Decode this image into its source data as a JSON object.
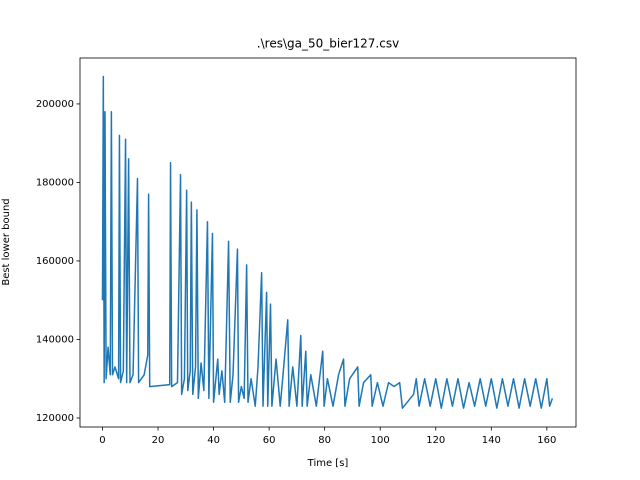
{
  "chart_data": {
    "type": "line",
    "title": ".\\res\\ga_50_bier127.csv",
    "x_label": "Time [s]",
    "y_label": "Best lower bound",
    "xlim": [
      -8.1,
      170.5
    ],
    "ylim": [
      117700,
      211700
    ],
    "xticks": [
      0,
      20,
      40,
      60,
      80,
      100,
      120,
      140,
      160
    ],
    "yticks": [
      120000,
      140000,
      160000,
      180000,
      200000
    ],
    "grid": false,
    "series": [
      {
        "color": "#1f77b4",
        "x": [
          0,
          0.3,
          0.6,
          0.9,
          1.3,
          2,
          2.8,
          3.2,
          3.6,
          4.5,
          5.8,
          6.1,
          6.5,
          7.5,
          8.3,
          8.7,
          9.4,
          9.9,
          11,
          12.6,
          13,
          15,
          16.3,
          16.6,
          17,
          24.2,
          24.5,
          24.9,
          27,
          28.1,
          28.5,
          29.5,
          30.3,
          30.7,
          31.6,
          32,
          32.5,
          33.5,
          34,
          34.5,
          35.5,
          36.5,
          37.8,
          38.3,
          39.6,
          40,
          41.5,
          42,
          43,
          44,
          45.4,
          46,
          47,
          48.6,
          49,
          50,
          51,
          51.9,
          52.4,
          53.5,
          55,
          56,
          57.3,
          57.8,
          59.1,
          59.5,
          60.5,
          61,
          62.5,
          64,
          65,
          66.7,
          67.2,
          68.5,
          70,
          71.4,
          71.9,
          73.2,
          73.7,
          75,
          77,
          79.3,
          79.8,
          81,
          83,
          85,
          86.8,
          87.3,
          89,
          91.9,
          92.4,
          94,
          96.6,
          97.1,
          99,
          101,
          103,
          105,
          107,
          108,
          112,
          113,
          114,
          116,
          118,
          120,
          122,
          124,
          126,
          128,
          130,
          132,
          134,
          136,
          138,
          140,
          142,
          144,
          146,
          148,
          150,
          152,
          154,
          156,
          158,
          160,
          161,
          162
        ],
        "values": [
          150000,
          207000,
          129000,
          198000,
          130000,
          138000,
          131000,
          198000,
          131000,
          133000,
          130000,
          192000,
          129000,
          132000,
          191000,
          129000,
          186000,
          129000,
          131000,
          181000,
          129000,
          131000,
          136000,
          177000,
          128000,
          128500,
          185000,
          128000,
          129000,
          182000,
          126000,
          130000,
          178000,
          127000,
          132000,
          175000,
          126000,
          133000,
          173000,
          125000,
          134000,
          127000,
          170000,
          125000,
          167000,
          124000,
          135000,
          126000,
          132000,
          124000,
          165000,
          124000,
          131000,
          163000,
          124000,
          128000,
          125000,
          159000,
          124000,
          130000,
          123000,
          133000,
          157000,
          123000,
          152000,
          123000,
          149000,
          123000,
          135000,
          123000,
          131000,
          145000,
          123000,
          133000,
          123000,
          141000,
          123000,
          137000,
          123000,
          131000,
          123000,
          137000,
          123000,
          130000,
          123000,
          131000,
          135000,
          123000,
          130000,
          133000,
          123000,
          129000,
          131000,
          123000,
          129000,
          123000,
          129000,
          128000,
          129000,
          122500,
          126000,
          130000,
          123000,
          130000,
          123000,
          130000,
          122500,
          130000,
          123000,
          130000,
          122500,
          129000,
          123000,
          130000,
          123000,
          130000,
          122500,
          130000,
          123000,
          130000,
          122500,
          130000,
          123000,
          130000,
          122500,
          130000,
          123000,
          125000
        ]
      }
    ]
  }
}
